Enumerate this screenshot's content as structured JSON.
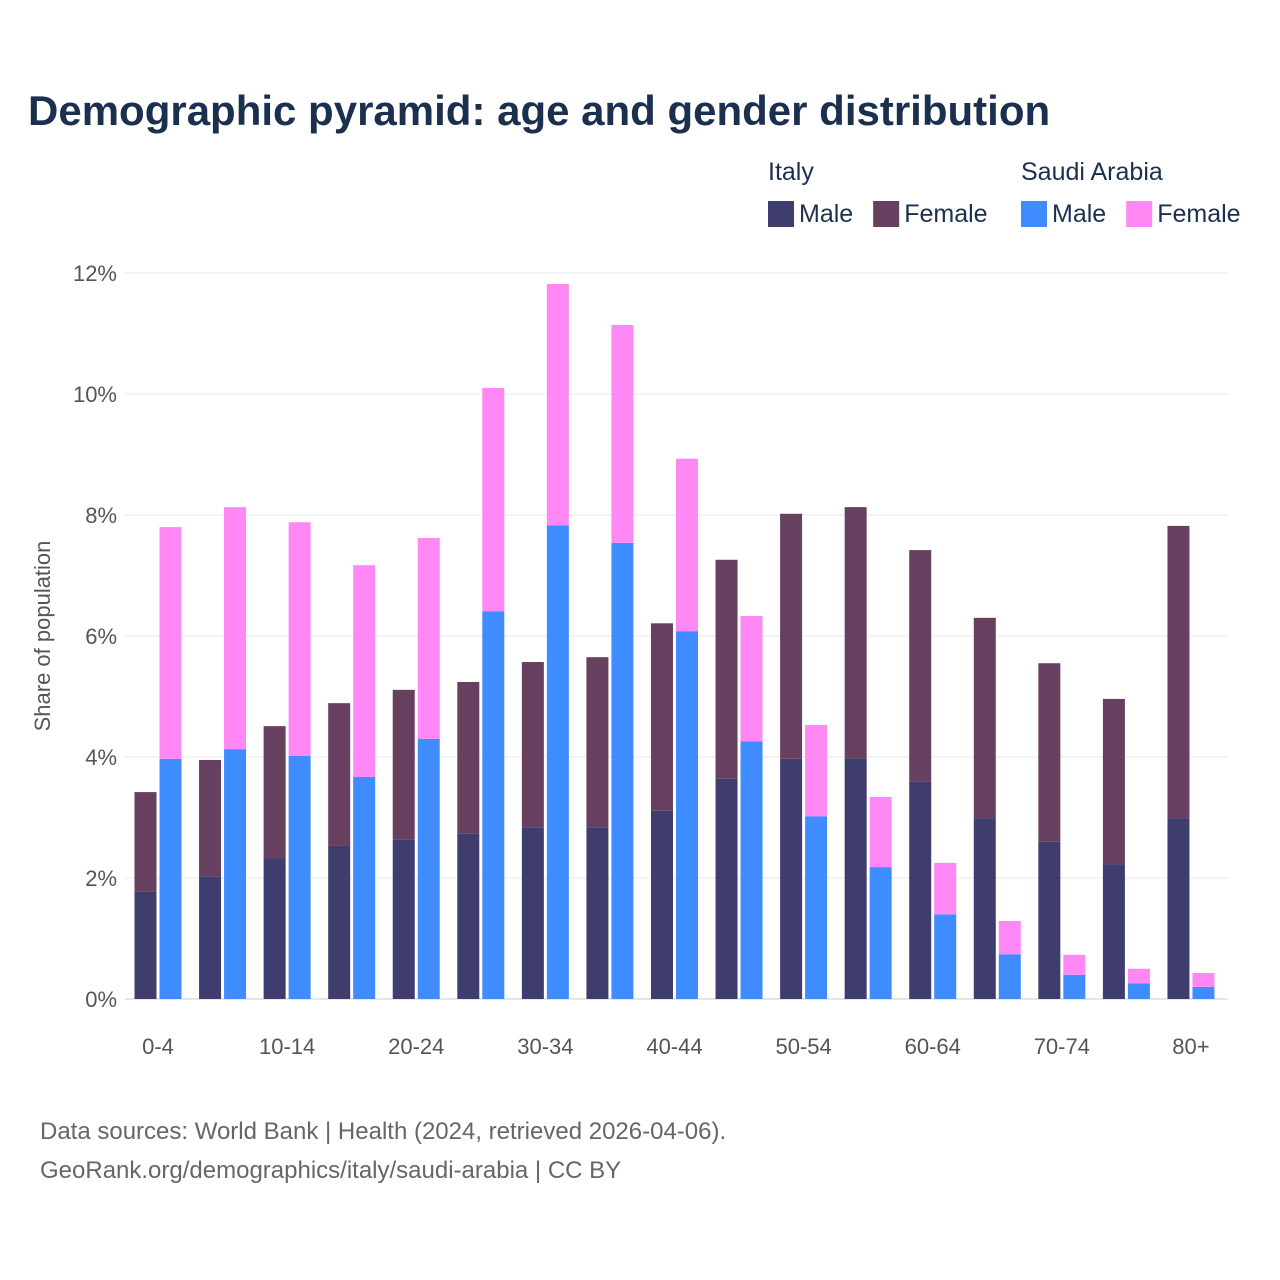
{
  "chart_data": {
    "type": "bar",
    "stacked": true,
    "title": "Demographic pyramid: age and gender distribution",
    "xlabel": "",
    "ylabel": "Share of population",
    "ylim": [
      0,
      12
    ],
    "yticks": [
      0,
      2,
      4,
      6,
      8,
      10,
      12
    ],
    "ytick_labels": [
      "0%",
      "2%",
      "4%",
      "6%",
      "8%",
      "10%",
      "12%"
    ],
    "grid": true,
    "legend_placement": "top-right",
    "categories": [
      "0-4",
      "5-9",
      "10-14",
      "15-19",
      "20-24",
      "25-29",
      "30-34",
      "35-39",
      "40-44",
      "45-49",
      "50-54",
      "55-59",
      "60-64",
      "65-69",
      "70-74",
      "75-79",
      "80+"
    ],
    "shown_tick_labels": [
      "0-4",
      "10-14",
      "20-24",
      "30-34",
      "40-44",
      "50-54",
      "60-64",
      "70-74",
      "80+"
    ],
    "groups": [
      {
        "name": "Italy",
        "series": [
          {
            "name": "Male",
            "color": "#3f3d6e",
            "values": [
              1.77,
              2.03,
              2.33,
              2.53,
              2.64,
              2.74,
              2.84,
              2.84,
              3.11,
              3.64,
              3.97,
              3.98,
              3.6,
              2.99,
              2.6,
              2.23,
              2.99
            ]
          },
          {
            "name": "Female",
            "color": "#67405f",
            "values": [
              1.65,
              1.92,
              2.18,
              2.36,
              2.47,
              2.5,
              2.73,
              2.81,
              3.1,
              3.62,
              4.05,
              4.15,
              3.82,
              3.31,
              2.95,
              2.73,
              4.83
            ]
          }
        ]
      },
      {
        "name": "Saudi Arabia",
        "series": [
          {
            "name": "Male",
            "color": "#3f8cff",
            "values": [
              3.97,
              4.13,
              4.02,
              3.67,
              4.3,
              6.41,
              7.83,
              7.54,
              6.08,
              4.26,
              3.02,
              2.18,
              1.4,
              0.74,
              0.4,
              0.26,
              0.2
            ]
          },
          {
            "name": "Female",
            "color": "#ff88f5",
            "values": [
              3.83,
              4.0,
              3.86,
              3.5,
              3.32,
              3.69,
              3.99,
              3.6,
              2.85,
              2.07,
              1.51,
              1.16,
              0.85,
              0.55,
              0.33,
              0.24,
              0.23
            ]
          }
        ]
      }
    ]
  },
  "source_line1": "Data sources: World Bank | Health (2024, retrieved 2026-04-06).",
  "source_line2": "GeoRank.org/demographics/italy/saudi-arabia | CC BY"
}
